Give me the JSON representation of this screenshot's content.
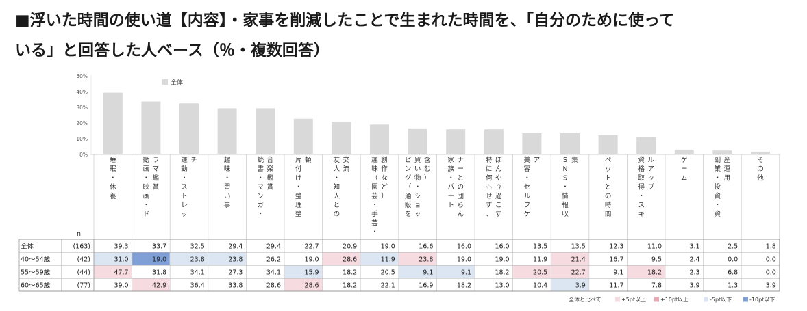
{
  "title_line1": "■浮いた時間の使い道【内容】・家事を削減したことで生まれた時間を、「自分のために使って",
  "title_line2": "いる」と回答した人ベース（％・複数回答）",
  "colors": {
    "bar": "#d9d9d9",
    "plus5": "#f6dbe0",
    "plus10": "#e8a9b4",
    "minus5": "#dce6f2",
    "minus10": "#7f9fd6",
    "grid": "#bbbbbb"
  },
  "chart_data": {
    "type": "bar",
    "ylim": [
      0,
      50
    ],
    "yticks": [
      "0%",
      "10%",
      "20%",
      "30%",
      "40%",
      "50%"
    ],
    "legend": "全体",
    "n_header": "n",
    "categories": [
      "睡眠・休養",
      "動画・映画・ドラマ鑑賞",
      "運動・ストレッチ",
      "趣味・習い事",
      "読書・マンガ・音楽鑑賞",
      "片付け・整理整頓",
      "友人・知人との交流",
      "趣味・習い事（園芸・手芸・創作など）",
      "買い物・ショッピング（通販を含む）",
      "家族・パートナーとの団らん",
      "特に何もせず、ぼんやり過ごす",
      "美容・セルフケア",
      "SNS・情報収集",
      "ペットとの時間",
      "資格取得・スキルアップ",
      "ゲーム",
      "副業・投資・資産運用",
      "その他"
    ],
    "category_columns": [
      [
        [
          "睡",
          "眠",
          "・",
          "休",
          "養"
        ]
      ],
      [
        [
          "ラ",
          "マ",
          "鑑",
          "賞"
        ],
        [
          "動",
          "画",
          "・",
          "映",
          "画",
          "・",
          "ド"
        ]
      ],
      [
        [
          "チ"
        ],
        [
          "運",
          "動",
          "・",
          "ス",
          "ト",
          "レ",
          "ッ"
        ]
      ],
      [
        [
          "趣",
          "味",
          "・",
          "習",
          "い",
          "事"
        ]
      ],
      [
        [
          "音",
          "楽",
          "鑑",
          "賞"
        ],
        [
          "読",
          "書",
          "・",
          "マ",
          "ン",
          "ガ",
          "・"
        ]
      ],
      [
        [
          "頓"
        ],
        [
          "片",
          "付",
          "け",
          "・",
          "整",
          "理",
          "整"
        ]
      ],
      [
        [
          "交",
          "流"
        ],
        [
          "友",
          "人",
          "・",
          "知",
          "人",
          "と",
          "の"
        ]
      ],
      [
        [
          "創",
          "作",
          "な",
          "ど",
          "）"
        ],
        [
          "趣",
          "味",
          "（",
          "園",
          "芸",
          "・",
          "手",
          "芸",
          "・"
        ]
      ],
      [
        [
          "含",
          "む",
          "）"
        ],
        [
          "買",
          "い",
          "物",
          "・",
          "シ",
          "ョ",
          "ッ"
        ],
        [
          "ピ",
          "ン",
          "グ",
          "（",
          "通",
          "販",
          "を"
        ]
      ],
      [
        [
          "ナ",
          "ー",
          "と",
          "の",
          "団",
          "ら",
          "ん"
        ],
        [
          "家",
          "族",
          "・",
          "パ",
          "ー",
          "ト"
        ]
      ],
      [
        [
          "ぼ",
          "ん",
          "や",
          "り",
          "過",
          "ご",
          "す"
        ],
        [
          "特",
          "に",
          "何",
          "も",
          "せ",
          "ず",
          "、"
        ]
      ],
      [
        [
          "ア"
        ],
        [
          "美",
          "容",
          "・",
          "セ",
          "ル",
          "フ",
          "ケ"
        ]
      ],
      [
        [
          "集"
        ],
        [
          "S",
          "N",
          "S",
          "・",
          "情",
          "報",
          "収"
        ]
      ],
      [
        [
          "ペ",
          "ッ",
          "ト",
          "と",
          "の",
          "時",
          "間"
        ]
      ],
      [
        [
          "ル",
          "ア",
          "ッ",
          "プ"
        ],
        [
          "資",
          "格",
          "取",
          "得",
          "・",
          "ス",
          "キ"
        ]
      ],
      [
        [
          "ゲ",
          "ー",
          "ム"
        ]
      ],
      [
        [
          "産",
          "運",
          "用"
        ],
        [
          "副",
          "業",
          "・",
          "投",
          "資",
          "・",
          "資"
        ]
      ],
      [
        [
          "そ",
          "の",
          "他"
        ]
      ]
    ],
    "series": [
      {
        "values": [
          39.3,
          33.7,
          32.5,
          29.4,
          29.4,
          22.7,
          20.9,
          19.0,
          16.6,
          16.0,
          16.0,
          13.5,
          13.5,
          12.3,
          11.0,
          3.1,
          2.5,
          1.8
        ]
      }
    ],
    "table_rows": [
      {
        "label": "全体",
        "n": "(163)",
        "values": [
          "39.3",
          "33.7",
          "32.5",
          "29.4",
          "29.4",
          "22.7",
          "20.9",
          "19.0",
          "16.6",
          "16.0",
          "16.0",
          "13.5",
          "13.5",
          "12.3",
          "11.0",
          "3.1",
          "2.5",
          "1.8"
        ],
        "highlight": [
          "",
          "",
          "",
          "",
          "",
          "",
          "",
          "",
          "",
          "",
          "",
          "",
          "",
          "",
          "",
          "",
          "",
          ""
        ]
      },
      {
        "label": "40～54歳",
        "n": "(42)",
        "values": [
          "31.0",
          "19.0",
          "23.8",
          "23.8",
          "26.2",
          "19.0",
          "28.6",
          "11.9",
          "23.8",
          "19.0",
          "19.0",
          "11.9",
          "21.4",
          "16.7",
          "9.5",
          "2.4",
          "0.0",
          "0.0"
        ],
        "highlight": [
          "minus5",
          "minus10",
          "minus5",
          "minus5",
          "",
          "",
          "plus5",
          "minus5",
          "plus5",
          "",
          "",
          "",
          "plus5",
          "",
          "",
          "",
          "",
          ""
        ]
      },
      {
        "label": "55～59歳",
        "n": "(44)",
        "values": [
          "47.7",
          "31.8",
          "34.1",
          "27.3",
          "34.1",
          "15.9",
          "18.2",
          "20.5",
          "9.1",
          "9.1",
          "18.2",
          "20.5",
          "22.7",
          "9.1",
          "18.2",
          "2.3",
          "6.8",
          "0.0"
        ],
        "highlight": [
          "plus5",
          "",
          "",
          "",
          "",
          "minus5",
          "",
          "",
          "minus5",
          "minus5",
          "",
          "plus5",
          "plus5",
          "",
          "plus5",
          "",
          "",
          ""
        ]
      },
      {
        "label": "60～65歳",
        "n": "(77)",
        "values": [
          "39.0",
          "42.9",
          "36.4",
          "33.8",
          "28.6",
          "28.6",
          "18.2",
          "22.1",
          "16.9",
          "18.2",
          "13.0",
          "10.4",
          "3.9",
          "11.7",
          "7.8",
          "3.9",
          "1.3",
          "3.9"
        ],
        "highlight": [
          "",
          "plus5",
          "",
          "",
          "",
          "plus5",
          "",
          "",
          "",
          "",
          "",
          "",
          "minus5",
          "",
          "",
          "",
          "",
          ""
        ]
      }
    ],
    "note": {
      "prefix": "全体と比べて",
      "items": [
        {
          "key": "plus5",
          "text": "+5pt以上"
        },
        {
          "key": "plus10",
          "text": "+10pt以上"
        },
        {
          "key": "minus5",
          "text": "-5pt以下"
        },
        {
          "key": "minus10",
          "text": "-10pt以下"
        }
      ]
    }
  }
}
